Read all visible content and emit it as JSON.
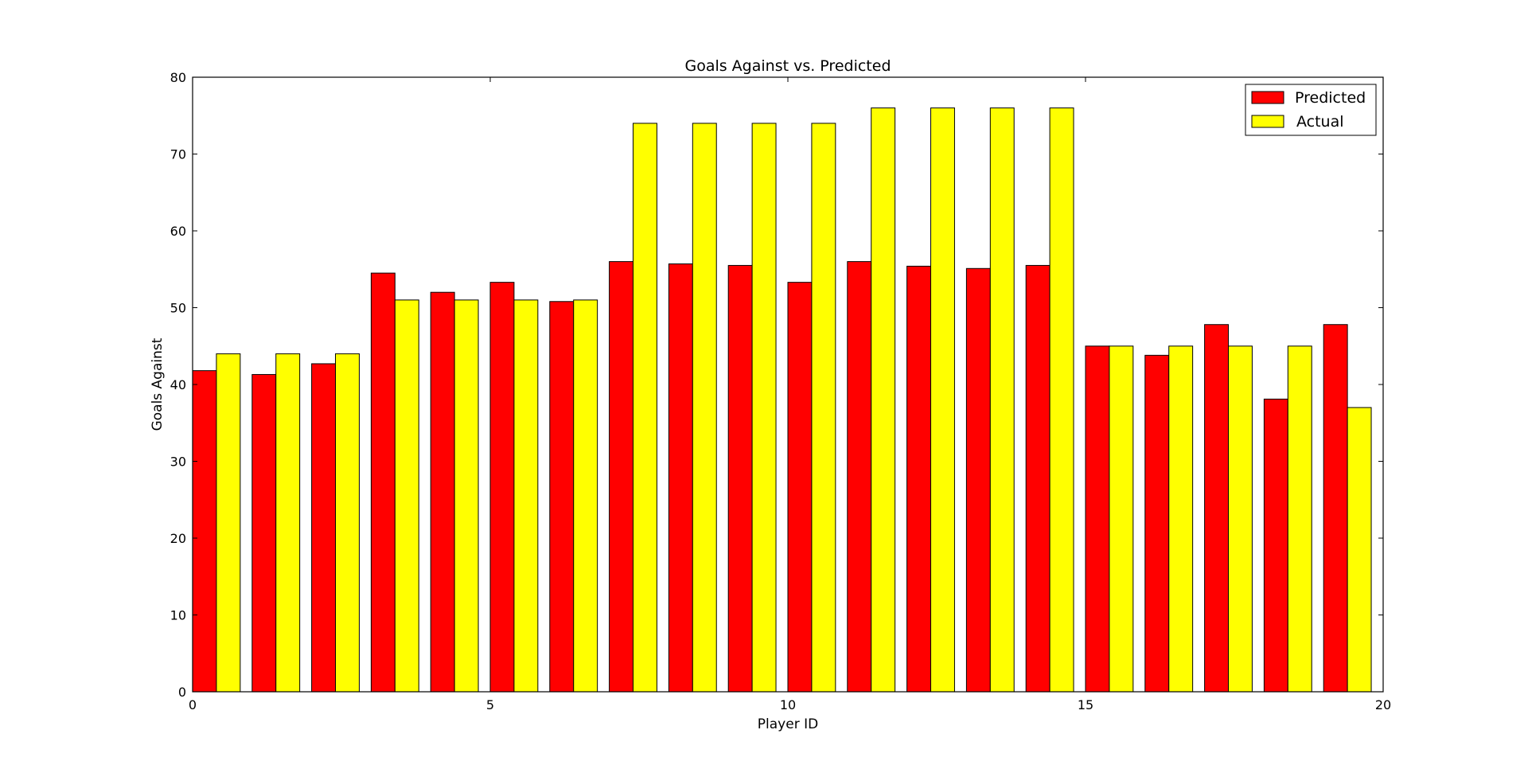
{
  "chart_data": {
    "type": "bar",
    "title": "Goals Against vs. Predicted",
    "xlabel": "Player ID",
    "ylabel": "Goals Against",
    "xlim": [
      0,
      20
    ],
    "ylim": [
      0,
      80
    ],
    "x_ticks": [
      0,
      5,
      10,
      15,
      20
    ],
    "y_ticks": [
      0,
      10,
      20,
      30,
      40,
      50,
      60,
      70,
      80
    ],
    "bar_width": 0.4,
    "x": [
      0,
      1,
      2,
      3,
      4,
      5,
      6,
      7,
      8,
      9,
      10,
      11,
      12,
      13,
      14,
      15,
      16,
      17,
      18,
      19
    ],
    "series": [
      {
        "name": "Predicted",
        "color": "#ff0000",
        "values": [
          41.8,
          41.3,
          42.7,
          54.5,
          52.0,
          53.3,
          50.8,
          56.0,
          55.7,
          55.5,
          53.3,
          56.0,
          55.4,
          55.1,
          55.5,
          45.0,
          43.8,
          47.8,
          38.1,
          47.8
        ]
      },
      {
        "name": "Actual",
        "color": "#ffff00",
        "values": [
          44,
          44,
          44,
          51,
          51,
          51,
          51,
          74,
          74,
          74,
          74,
          76,
          76,
          76,
          76,
          45,
          45,
          45,
          45,
          37
        ]
      }
    ],
    "legend": "top-right",
    "grid": false
  }
}
